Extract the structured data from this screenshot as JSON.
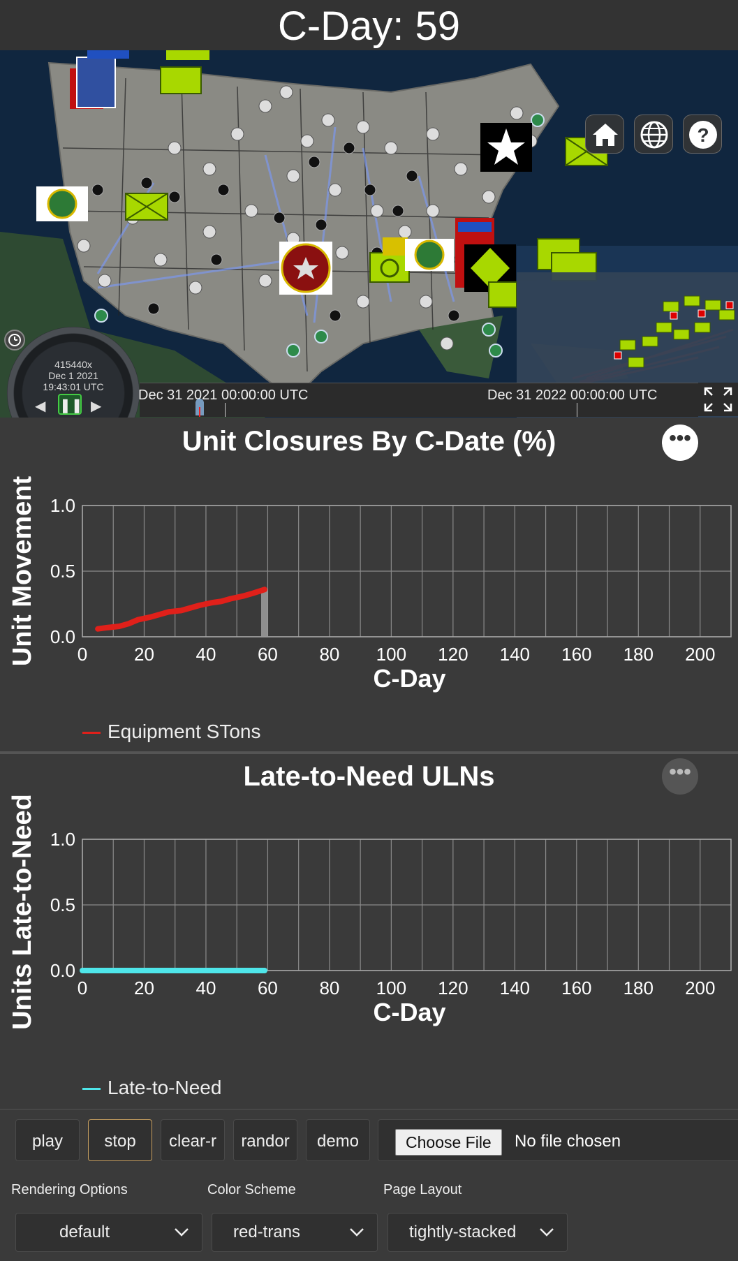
{
  "header": {
    "title": "C-Day: 59"
  },
  "map": {
    "home_icon": "home-icon",
    "globe_icon": "globe-icon",
    "help_icon": "help-icon",
    "animation": {
      "multiplier": "415440x",
      "date": "Dec 1 2021",
      "time": "19:43:01 UTC"
    },
    "timeline": {
      "start_label": "Dec 31 2021 00:00:00 UTC",
      "end_label": "Dec 31 2022 00:00:00 UTC"
    }
  },
  "chart1": {
    "title": "Unit Closures By C-Date (%)",
    "menu_icon": "ellipsis-icon",
    "legend": "Equipment STons"
  },
  "chart2": {
    "title": "Late-to-Need ULNs",
    "menu_icon": "ellipsis-icon",
    "legend": "Late-to-Need"
  },
  "chart_data": [
    {
      "type": "line",
      "title": "Unit Closures By C-Date (%)",
      "xlabel": "C-Day",
      "ylabel": "Unit Movement",
      "xlim": [
        0,
        210
      ],
      "ylim": [
        0,
        1
      ],
      "xticks": [
        "0",
        "20",
        "40",
        "60",
        "80",
        "100",
        "120",
        "140",
        "160",
        "180",
        "200"
      ],
      "yticks": [
        "0.0",
        "0.5",
        "1.0"
      ],
      "grid": true,
      "legend_position": "bottom-left",
      "current_day": 59,
      "series": [
        {
          "name": "Equipment STons",
          "color": "#e0201a",
          "x": [
            5,
            8,
            12,
            15,
            18,
            22,
            25,
            28,
            32,
            35,
            38,
            42,
            45,
            48,
            52,
            55,
            59
          ],
          "y": [
            0.06,
            0.07,
            0.08,
            0.1,
            0.13,
            0.15,
            0.17,
            0.19,
            0.2,
            0.22,
            0.24,
            0.26,
            0.27,
            0.29,
            0.31,
            0.33,
            0.36
          ]
        }
      ]
    },
    {
      "type": "line",
      "title": "Late-to-Need ULNs",
      "xlabel": "C-Day",
      "ylabel": "Units Late-to-Need",
      "xlim": [
        0,
        210
      ],
      "ylim": [
        0,
        1
      ],
      "xticks": [
        "0",
        "20",
        "40",
        "60",
        "80",
        "100",
        "120",
        "140",
        "160",
        "180",
        "200"
      ],
      "yticks": [
        "0.0",
        "0.5",
        "1.0"
      ],
      "grid": true,
      "legend_position": "bottom-left",
      "series": [
        {
          "name": "Late-to-Need",
          "color": "#4fe6ea",
          "x": [
            0,
            10,
            20,
            30,
            40,
            50,
            59
          ],
          "y": [
            0,
            0,
            0,
            0,
            0,
            0,
            0
          ]
        }
      ]
    }
  ],
  "controls": {
    "buttons": {
      "play": "play",
      "stop": "stop",
      "clear": "clear-r",
      "random": "randor",
      "demo": "demo"
    },
    "file": {
      "button_label": "Choose File",
      "status": "No file chosen"
    },
    "selects": {
      "rendering": {
        "label": "Rendering Options",
        "value": "default"
      },
      "color": {
        "label": "Color Scheme",
        "value": "red-trans"
      },
      "layout": {
        "label": "Page Layout",
        "value": "tightly-stacked"
      }
    }
  }
}
